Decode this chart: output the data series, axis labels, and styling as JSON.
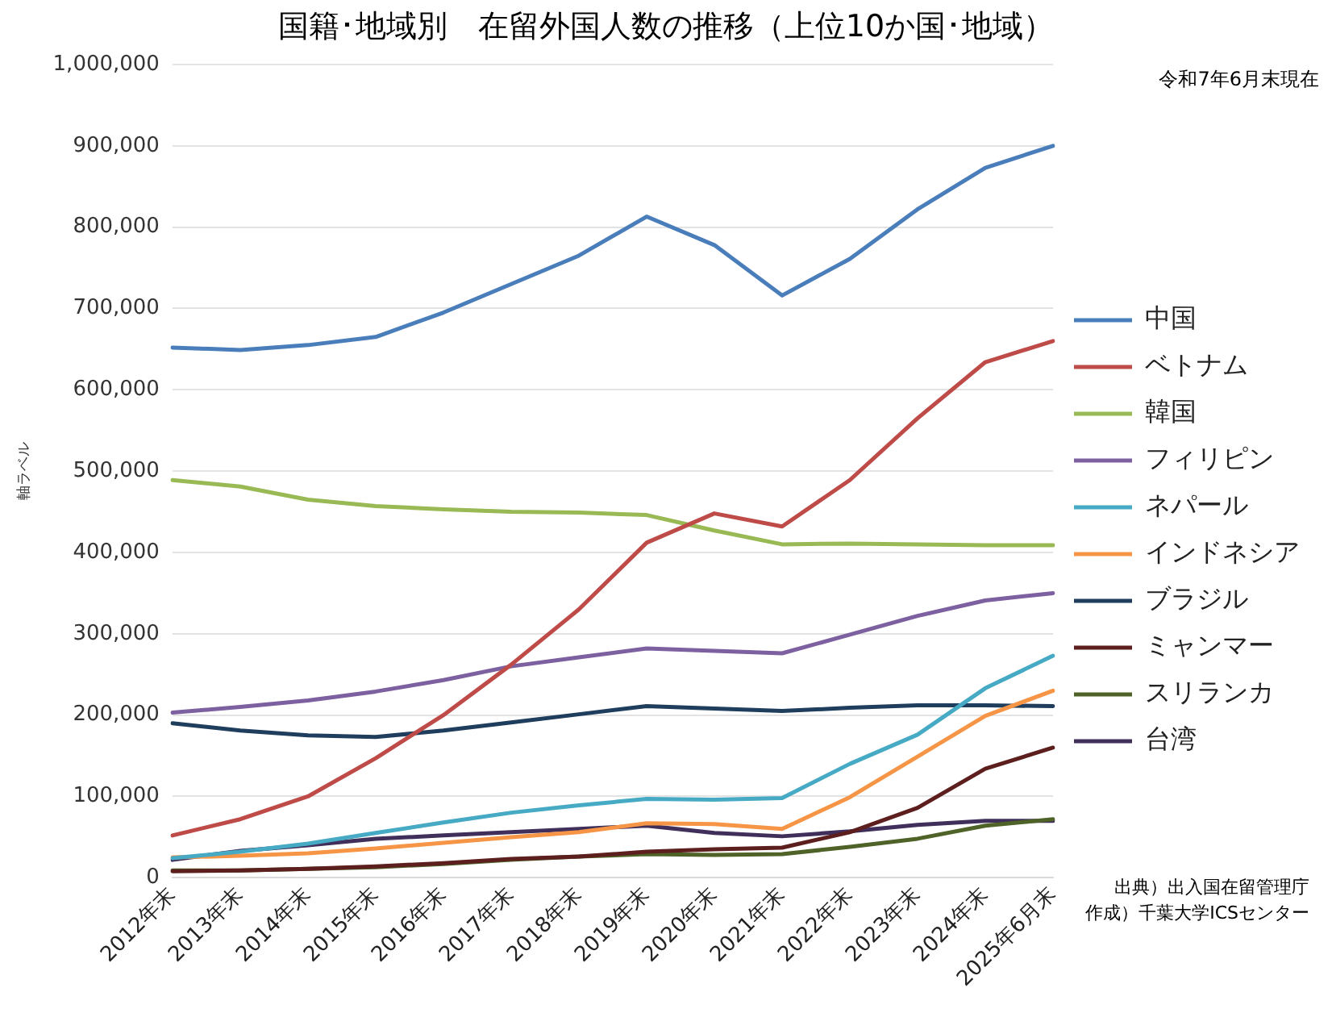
{
  "chart_data": {
    "type": "line",
    "title": "国籍･地域別　在留外国人数の推移（上位10か国･地域）",
    "ylabel": "軸ラベル",
    "annotations": [
      "令和7年6月末現在",
      "出典）出入国在留管理庁",
      "作成）千葉大学ICSセンター"
    ],
    "categories": [
      "2012年末",
      "2013年末",
      "2014年末",
      "2015年末",
      "2016年末",
      "2017年末",
      "2018年末",
      "2019年末",
      "2020年末",
      "2021年末",
      "2022年末",
      "2023年末",
      "2024年末",
      "2025年6月末"
    ],
    "series": [
      {
        "name": "中国",
        "color": "#4a7ebb",
        "values": [
          652000,
          649000,
          655000,
          665000,
          695000,
          730000,
          765000,
          813000,
          778000,
          716000,
          761000,
          822000,
          873000,
          900000
        ]
      },
      {
        "name": "ベトナム",
        "color": "#be4b48",
        "values": [
          52000,
          72000,
          100000,
          147000,
          200000,
          262000,
          330000,
          412000,
          448000,
          432000,
          489000,
          565000,
          634000,
          660000
        ]
      },
      {
        "name": "韓国",
        "color": "#98b954",
        "values": [
          489000,
          481000,
          465000,
          457000,
          453000,
          450000,
          449000,
          446000,
          427000,
          410000,
          411000,
          410000,
          409000,
          409000
        ]
      },
      {
        "name": "フィリピン",
        "color": "#7d60a0",
        "values": [
          203000,
          210000,
          218000,
          229000,
          243000,
          260000,
          271000,
          282000,
          279000,
          276000,
          299000,
          322000,
          341000,
          350000
        ]
      },
      {
        "name": "ネパール",
        "color": "#46aac5",
        "values": [
          24000,
          32000,
          42000,
          55000,
          68000,
          80000,
          89000,
          97000,
          96000,
          98000,
          140000,
          176000,
          233000,
          273000
        ]
      },
      {
        "name": "インドネシア",
        "color": "#f69546",
        "values": [
          25000,
          27000,
          30000,
          36000,
          43000,
          50000,
          56000,
          67000,
          66000,
          60000,
          99000,
          149000,
          199000,
          230000
        ]
      },
      {
        "name": "ブラジル",
        "color": "#1f3d5c",
        "values": [
          190000,
          181000,
          175000,
          173000,
          181000,
          191000,
          201000,
          211000,
          208000,
          205000,
          209000,
          212000,
          212000,
          211000
        ]
      },
      {
        "name": "ミャンマー",
        "color": "#5c1f1e",
        "values": [
          8000,
          9000,
          11000,
          14000,
          18000,
          23000,
          26000,
          32000,
          35000,
          37000,
          56000,
          86000,
          134000,
          160000
        ]
      },
      {
        "name": "スリランカ",
        "color": "#4f6228",
        "values": [
          9000,
          9000,
          11000,
          13000,
          17000,
          22000,
          26000,
          29000,
          28000,
          29000,
          38000,
          48000,
          64000,
          72000
        ]
      },
      {
        "name": "台湾",
        "color": "#3f2f5a",
        "values": [
          22000,
          33000,
          40000,
          48000,
          52000,
          56000,
          60000,
          64000,
          55000,
          51000,
          57000,
          65000,
          70000,
          70000
        ]
      }
    ],
    "ylim": [
      0,
      1000000
    ],
    "yticks": [
      0,
      {
        "value": 100000,
        "label": "100,000"
      },
      {
        "value": 200000,
        "label": "200,000"
      },
      {
        "value": 300000,
        "label": "300,000"
      },
      {
        "value": 400000,
        "label": "400,000"
      },
      {
        "value": 500000,
        "label": "500,000"
      },
      {
        "value": 600000,
        "label": "600,000"
      },
      {
        "value": 700000,
        "label": "700,000"
      },
      {
        "value": 800000,
        "label": "800,000"
      },
      {
        "value": 900000,
        "label": "900,000"
      },
      {
        "value": 1000000,
        "label": "1,000,000"
      }
    ],
    "grid": "y",
    "legend": "right",
    "marker": "none",
    "line_style": "solid"
  }
}
